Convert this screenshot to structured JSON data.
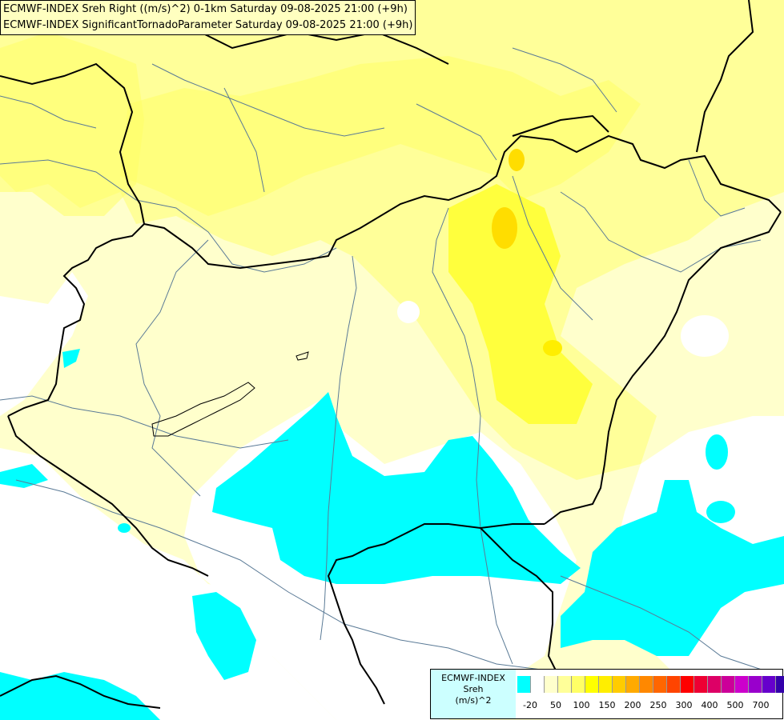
{
  "titles": {
    "line1": "ECMWF-INDEX Sreh Right ((m/s)^2) 0-1km Saturday 09-08-2025 21:00 (+9h)",
    "line2": "ECMWF-INDEX SignificantTornadoParameter Saturday 09-08-2025 21:00 (+9h)"
  },
  "legend": {
    "source": "ECMWF-INDEX",
    "variable": "Sreh",
    "unit": "(m/s)^2",
    "ticks": [
      "-20",
      "50",
      "100",
      "150",
      "200",
      "250",
      "300",
      "400",
      "500",
      "700"
    ],
    "colors": [
      "#00ffff",
      "#ffffff",
      "#ffffcc",
      "#ffff99",
      "#ffff66",
      "#ffff00",
      "#ffee00",
      "#ffcc00",
      "#ffaa00",
      "#ff8800",
      "#ff6600",
      "#ff4400",
      "#ff0000",
      "#ee0033",
      "#dd0066",
      "#cc0099",
      "#cc00cc",
      "#9900cc",
      "#6600cc",
      "#3300aa",
      "#000088"
    ]
  }
}
